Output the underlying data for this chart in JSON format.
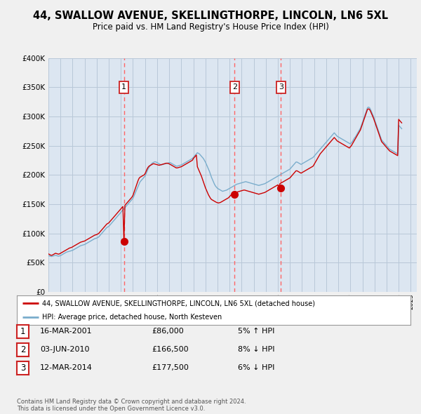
{
  "title": "44, SWALLOW AVENUE, SKELLINGTHORPE, LINCOLN, LN6 5XL",
  "subtitle": "Price paid vs. HM Land Registry's House Price Index (HPI)",
  "ylim": [
    0,
    400000
  ],
  "yticks": [
    0,
    50000,
    100000,
    150000,
    200000,
    250000,
    300000,
    350000,
    400000
  ],
  "line_color_red": "#cc0000",
  "line_color_blue": "#7aadcc",
  "vline_color": "#ff6666",
  "bg_color": "#f0f0f0",
  "plot_bg": "#dce6f1",
  "grid_color": "#b8c8d8",
  "legend_label_red": "44, SWALLOW AVENUE, SKELLINGTHORPE, LINCOLN, LN6 5XL (detached house)",
  "legend_label_blue": "HPI: Average price, detached house, North Kesteven",
  "sales": [
    {
      "num": 1,
      "date": "16-MAR-2001",
      "price": 86000,
      "pct": "5%",
      "dir": "↑",
      "x_year": 2001.25
    },
    {
      "num": 2,
      "date": "03-JUN-2010",
      "price": 166500,
      "pct": "8%",
      "dir": "↓",
      "x_year": 2010.42
    },
    {
      "num": 3,
      "date": "12-MAR-2014",
      "price": 177500,
      "pct": "6%",
      "dir": "↓",
      "x_year": 2014.25
    }
  ],
  "footer": "Contains HM Land Registry data © Crown copyright and database right 2024.\nThis data is licensed under the Open Government Licence v3.0.",
  "xmin": 1995,
  "xmax": 2025.5,
  "hpi_x": [
    1995.0,
    1995.083,
    1995.167,
    1995.25,
    1995.333,
    1995.417,
    1995.5,
    1995.583,
    1995.667,
    1995.75,
    1995.833,
    1995.917,
    1996.0,
    1996.083,
    1996.167,
    1996.25,
    1996.333,
    1996.417,
    1996.5,
    1996.583,
    1996.667,
    1996.75,
    1996.833,
    1996.917,
    1997.0,
    1997.083,
    1997.167,
    1997.25,
    1997.333,
    1997.417,
    1997.5,
    1997.583,
    1997.667,
    1997.75,
    1997.833,
    1997.917,
    1998.0,
    1998.083,
    1998.167,
    1998.25,
    1998.333,
    1998.417,
    1998.5,
    1998.583,
    1998.667,
    1998.75,
    1998.833,
    1998.917,
    1999.0,
    1999.083,
    1999.167,
    1999.25,
    1999.333,
    1999.417,
    1999.5,
    1999.583,
    1999.667,
    1999.75,
    1999.833,
    1999.917,
    2000.0,
    2000.083,
    2000.167,
    2000.25,
    2000.333,
    2000.417,
    2000.5,
    2000.583,
    2000.667,
    2000.75,
    2000.833,
    2000.917,
    2001.0,
    2001.083,
    2001.167,
    2001.25,
    2001.333,
    2001.417,
    2001.5,
    2001.583,
    2001.667,
    2001.75,
    2001.833,
    2001.917,
    2002.0,
    2002.083,
    2002.167,
    2002.25,
    2002.333,
    2002.417,
    2002.5,
    2002.583,
    2002.667,
    2002.75,
    2002.833,
    2002.917,
    2003.0,
    2003.083,
    2003.167,
    2003.25,
    2003.333,
    2003.417,
    2003.5,
    2003.583,
    2003.667,
    2003.75,
    2003.833,
    2003.917,
    2004.0,
    2004.083,
    2004.167,
    2004.25,
    2004.333,
    2004.417,
    2004.5,
    2004.583,
    2004.667,
    2004.75,
    2004.833,
    2004.917,
    2005.0,
    2005.083,
    2005.167,
    2005.25,
    2005.333,
    2005.417,
    2005.5,
    2005.583,
    2005.667,
    2005.75,
    2005.833,
    2005.917,
    2006.0,
    2006.083,
    2006.167,
    2006.25,
    2006.333,
    2006.417,
    2006.5,
    2006.583,
    2006.667,
    2006.75,
    2006.833,
    2006.917,
    2007.0,
    2007.083,
    2007.167,
    2007.25,
    2007.333,
    2007.417,
    2007.5,
    2007.583,
    2007.667,
    2007.75,
    2007.833,
    2007.917,
    2008.0,
    2008.083,
    2008.167,
    2008.25,
    2008.333,
    2008.417,
    2008.5,
    2008.583,
    2008.667,
    2008.75,
    2008.833,
    2008.917,
    2009.0,
    2009.083,
    2009.167,
    2009.25,
    2009.333,
    2009.417,
    2009.5,
    2009.583,
    2009.667,
    2009.75,
    2009.833,
    2009.917,
    2010.0,
    2010.083,
    2010.167,
    2010.25,
    2010.333,
    2010.417,
    2010.5,
    2010.583,
    2010.667,
    2010.75,
    2010.833,
    2010.917,
    2011.0,
    2011.083,
    2011.167,
    2011.25,
    2011.333,
    2011.417,
    2011.5,
    2011.583,
    2011.667,
    2011.75,
    2011.833,
    2011.917,
    2012.0,
    2012.083,
    2012.167,
    2012.25,
    2012.333,
    2012.417,
    2012.5,
    2012.583,
    2012.667,
    2012.75,
    2012.833,
    2012.917,
    2013.0,
    2013.083,
    2013.167,
    2013.25,
    2013.333,
    2013.417,
    2013.5,
    2013.583,
    2013.667,
    2013.75,
    2013.833,
    2013.917,
    2014.0,
    2014.083,
    2014.167,
    2014.25,
    2014.333,
    2014.417,
    2014.5,
    2014.583,
    2014.667,
    2014.75,
    2014.833,
    2014.917,
    2015.0,
    2015.083,
    2015.167,
    2015.25,
    2015.333,
    2015.417,
    2015.5,
    2015.583,
    2015.667,
    2015.75,
    2015.833,
    2015.917,
    2016.0,
    2016.083,
    2016.167,
    2016.25,
    2016.333,
    2016.417,
    2016.5,
    2016.583,
    2016.667,
    2016.75,
    2016.833,
    2016.917,
    2017.0,
    2017.083,
    2017.167,
    2017.25,
    2017.333,
    2017.417,
    2017.5,
    2017.583,
    2017.667,
    2017.75,
    2017.833,
    2017.917,
    2018.0,
    2018.083,
    2018.167,
    2018.25,
    2018.333,
    2018.417,
    2018.5,
    2018.583,
    2018.667,
    2018.75,
    2018.833,
    2018.917,
    2019.0,
    2019.083,
    2019.167,
    2019.25,
    2019.333,
    2019.417,
    2019.5,
    2019.583,
    2019.667,
    2019.75,
    2019.833,
    2019.917,
    2020.0,
    2020.083,
    2020.167,
    2020.25,
    2020.333,
    2020.417,
    2020.5,
    2020.583,
    2020.667,
    2020.75,
    2020.833,
    2020.917,
    2021.0,
    2021.083,
    2021.167,
    2021.25,
    2021.333,
    2021.417,
    2021.5,
    2021.583,
    2021.667,
    2021.75,
    2021.833,
    2021.917,
    2022.0,
    2022.083,
    2022.167,
    2022.25,
    2022.333,
    2022.417,
    2022.5,
    2022.583,
    2022.667,
    2022.75,
    2022.833,
    2022.917,
    2023.0,
    2023.083,
    2023.167,
    2023.25,
    2023.333,
    2023.417,
    2023.5,
    2023.583,
    2023.667,
    2023.75,
    2023.833,
    2023.917,
    2024.0,
    2024.083,
    2024.167,
    2024.25
  ],
  "hpi_y": [
    62000,
    61500,
    61000,
    60500,
    61000,
    61500,
    62000,
    62500,
    62000,
    61500,
    61000,
    61500,
    62000,
    63000,
    64000,
    65000,
    66000,
    67000,
    68000,
    68500,
    69000,
    69500,
    70000,
    70500,
    71000,
    72000,
    73000,
    74000,
    75000,
    76000,
    77000,
    78000,
    79000,
    79500,
    80000,
    80500,
    81000,
    82000,
    83000,
    84000,
    85000,
    86000,
    87000,
    88000,
    89000,
    90000,
    91000,
    91500,
    92000,
    93000,
    94000,
    96000,
    98000,
    100000,
    102000,
    104000,
    106000,
    108000,
    110000,
    111000,
    112000,
    114000,
    116000,
    118000,
    120000,
    122000,
    124000,
    126000,
    128000,
    130000,
    132000,
    134000,
    136000,
    138000,
    140000,
    142000,
    144000,
    146000,
    148000,
    150000,
    152000,
    154000,
    156000,
    158000,
    160000,
    164000,
    168000,
    172000,
    176000,
    180000,
    184000,
    188000,
    190000,
    192000,
    194000,
    196000,
    198000,
    202000,
    206000,
    210000,
    213000,
    216000,
    218000,
    220000,
    221000,
    222000,
    222500,
    222000,
    221000,
    220000,
    219000,
    218000,
    217000,
    217500,
    218000,
    218500,
    219000,
    219500,
    220000,
    220500,
    221000,
    221000,
    220000,
    219000,
    218000,
    217000,
    216000,
    215000,
    215000,
    215500,
    216000,
    216500,
    217000,
    218000,
    219000,
    220000,
    221000,
    222000,
    223000,
    224000,
    225000,
    226000,
    227000,
    228000,
    230000,
    232000,
    234000,
    236000,
    238000,
    237000,
    236000,
    234000,
    232000,
    230000,
    228000,
    225000,
    222000,
    218000,
    214000,
    210000,
    206000,
    201000,
    196000,
    192000,
    188000,
    184000,
    181000,
    179000,
    177000,
    176000,
    175000,
    174000,
    173000,
    172000,
    172500,
    173000,
    173500,
    174000,
    175000,
    176000,
    177000,
    178000,
    179000,
    180000,
    181000,
    182000,
    183000,
    184000,
    184500,
    185000,
    185500,
    186000,
    186500,
    187000,
    187500,
    188000,
    188500,
    188000,
    187500,
    187000,
    186500,
    186000,
    185500,
    185000,
    184500,
    184000,
    183500,
    183000,
    182500,
    182000,
    182500,
    183000,
    183500,
    184000,
    184500,
    185000,
    186000,
    187000,
    188000,
    189000,
    190000,
    191000,
    192000,
    193000,
    194000,
    195000,
    196000,
    197000,
    198000,
    199000,
    200000,
    201000,
    202000,
    203000,
    204000,
    205000,
    206000,
    207000,
    208000,
    209000,
    210000,
    212000,
    214000,
    216000,
    218000,
    220000,
    222000,
    222000,
    221000,
    220000,
    219000,
    218000,
    219000,
    220000,
    221000,
    222000,
    223000,
    224000,
    225000,
    226000,
    227000,
    228000,
    229000,
    230000,
    232000,
    234000,
    236000,
    238000,
    240000,
    242000,
    244000,
    246000,
    248000,
    250000,
    252000,
    254000,
    256000,
    258000,
    260000,
    262000,
    264000,
    266000,
    268000,
    270000,
    272000,
    270000,
    268000,
    266000,
    265000,
    264000,
    263000,
    262000,
    261000,
    260000,
    259000,
    258000,
    257000,
    256000,
    255000,
    254000,
    253000,
    255000,
    257000,
    260000,
    263000,
    265000,
    268000,
    271000,
    274000,
    277000,
    280000,
    285000,
    290000,
    295000,
    300000,
    305000,
    310000,
    315000,
    316000,
    315000,
    312000,
    308000,
    304000,
    300000,
    295000,
    290000,
    285000,
    280000,
    275000,
    270000,
    265000,
    260000,
    258000,
    256000,
    254000,
    252000,
    250000,
    248000,
    246000,
    244000,
    243000,
    242000,
    241000,
    240000,
    239000,
    238000,
    237000,
    236000,
    285000,
    283000,
    281000,
    279000
  ],
  "price_x": [
    1995.0,
    1995.083,
    1995.167,
    1995.25,
    1995.333,
    1995.417,
    1995.5,
    1995.583,
    1995.667,
    1995.75,
    1995.833,
    1995.917,
    1996.0,
    1996.083,
    1996.167,
    1996.25,
    1996.333,
    1996.417,
    1996.5,
    1996.583,
    1996.667,
    1996.75,
    1996.833,
    1996.917,
    1997.0,
    1997.083,
    1997.167,
    1997.25,
    1997.333,
    1997.417,
    1997.5,
    1997.583,
    1997.667,
    1997.75,
    1997.833,
    1997.917,
    1998.0,
    1998.083,
    1998.167,
    1998.25,
    1998.333,
    1998.417,
    1998.5,
    1998.583,
    1998.667,
    1998.75,
    1998.833,
    1998.917,
    1999.0,
    1999.083,
    1999.167,
    1999.25,
    1999.333,
    1999.417,
    1999.5,
    1999.583,
    1999.667,
    1999.75,
    1999.833,
    1999.917,
    2000.0,
    2000.083,
    2000.167,
    2000.25,
    2000.333,
    2000.417,
    2000.5,
    2000.583,
    2000.667,
    2000.75,
    2000.833,
    2000.917,
    2001.0,
    2001.083,
    2001.167,
    2001.25,
    2001.333,
    2001.417,
    2001.5,
    2001.583,
    2001.667,
    2001.75,
    2001.833,
    2001.917,
    2002.0,
    2002.083,
    2002.167,
    2002.25,
    2002.333,
    2002.417,
    2002.5,
    2002.583,
    2002.667,
    2002.75,
    2002.833,
    2002.917,
    2003.0,
    2003.083,
    2003.167,
    2003.25,
    2003.333,
    2003.417,
    2003.5,
    2003.583,
    2003.667,
    2003.75,
    2003.833,
    2003.917,
    2004.0,
    2004.083,
    2004.167,
    2004.25,
    2004.333,
    2004.417,
    2004.5,
    2004.583,
    2004.667,
    2004.75,
    2004.833,
    2004.917,
    2005.0,
    2005.083,
    2005.167,
    2005.25,
    2005.333,
    2005.417,
    2005.5,
    2005.583,
    2005.667,
    2005.75,
    2005.833,
    2005.917,
    2006.0,
    2006.083,
    2006.167,
    2006.25,
    2006.333,
    2006.417,
    2006.5,
    2006.583,
    2006.667,
    2006.75,
    2006.833,
    2006.917,
    2007.0,
    2007.083,
    2007.167,
    2007.25,
    2007.333,
    2007.417,
    2007.5,
    2007.583,
    2007.667,
    2007.75,
    2007.833,
    2007.917,
    2008.0,
    2008.083,
    2008.167,
    2008.25,
    2008.333,
    2008.417,
    2008.5,
    2008.583,
    2008.667,
    2008.75,
    2008.833,
    2008.917,
    2009.0,
    2009.083,
    2009.167,
    2009.25,
    2009.333,
    2009.417,
    2009.5,
    2009.583,
    2009.667,
    2009.75,
    2009.833,
    2009.917,
    2010.0,
    2010.083,
    2010.167,
    2010.25,
    2010.333,
    2010.417,
    2010.5,
    2010.583,
    2010.667,
    2010.75,
    2010.833,
    2010.917,
    2011.0,
    2011.083,
    2011.167,
    2011.25,
    2011.333,
    2011.417,
    2011.5,
    2011.583,
    2011.667,
    2011.75,
    2011.833,
    2011.917,
    2012.0,
    2012.083,
    2012.167,
    2012.25,
    2012.333,
    2012.417,
    2012.5,
    2012.583,
    2012.667,
    2012.75,
    2012.833,
    2012.917,
    2013.0,
    2013.083,
    2013.167,
    2013.25,
    2013.333,
    2013.417,
    2013.5,
    2013.583,
    2013.667,
    2013.75,
    2013.833,
    2013.917,
    2014.0,
    2014.083,
    2014.167,
    2014.25,
    2014.333,
    2014.417,
    2014.5,
    2014.583,
    2014.667,
    2014.75,
    2014.833,
    2014.917,
    2015.0,
    2015.083,
    2015.167,
    2015.25,
    2015.333,
    2015.417,
    2015.5,
    2015.583,
    2015.667,
    2015.75,
    2015.833,
    2015.917,
    2016.0,
    2016.083,
    2016.167,
    2016.25,
    2016.333,
    2016.417,
    2016.5,
    2016.583,
    2016.667,
    2016.75,
    2016.833,
    2016.917,
    2017.0,
    2017.083,
    2017.167,
    2017.25,
    2017.333,
    2017.417,
    2017.5,
    2017.583,
    2017.667,
    2017.75,
    2017.833,
    2017.917,
    2018.0,
    2018.083,
    2018.167,
    2018.25,
    2018.333,
    2018.417,
    2018.5,
    2018.583,
    2018.667,
    2018.75,
    2018.833,
    2018.917,
    2019.0,
    2019.083,
    2019.167,
    2019.25,
    2019.333,
    2019.417,
    2019.5,
    2019.583,
    2019.667,
    2019.75,
    2019.833,
    2019.917,
    2020.0,
    2020.083,
    2020.167,
    2020.25,
    2020.333,
    2020.417,
    2020.5,
    2020.583,
    2020.667,
    2020.75,
    2020.833,
    2020.917,
    2021.0,
    2021.083,
    2021.167,
    2021.25,
    2021.333,
    2021.417,
    2021.5,
    2021.583,
    2021.667,
    2021.75,
    2021.833,
    2021.917,
    2022.0,
    2022.083,
    2022.167,
    2022.25,
    2022.333,
    2022.417,
    2022.5,
    2022.583,
    2022.667,
    2022.75,
    2022.833,
    2022.917,
    2023.0,
    2023.083,
    2023.167,
    2023.25,
    2023.333,
    2023.417,
    2023.5,
    2023.583,
    2023.667,
    2023.75,
    2023.833,
    2023.917,
    2024.0,
    2024.083,
    2024.167,
    2024.25
  ],
  "price_y": [
    65000,
    64000,
    63000,
    62500,
    63000,
    64000,
    65000,
    66000,
    65500,
    65000,
    64500,
    65000,
    66000,
    67000,
    68000,
    69000,
    70000,
    71000,
    72000,
    73000,
    74000,
    75000,
    75500,
    76000,
    77000,
    78000,
    79000,
    80000,
    81000,
    82000,
    83000,
    84000,
    85000,
    85500,
    86000,
    86500,
    87000,
    88000,
    89000,
    90000,
    91000,
    92000,
    93000,
    94000,
    95000,
    96000,
    97000,
    97500,
    98000,
    99000,
    100000,
    102000,
    104000,
    106000,
    108000,
    110000,
    112000,
    114000,
    116000,
    117000,
    118000,
    120000,
    122000,
    124000,
    126000,
    128000,
    130000,
    132000,
    134000,
    136000,
    138000,
    140000,
    142000,
    144000,
    146000,
    86000,
    148000,
    150000,
    152000,
    154000,
    156000,
    158000,
    160000,
    162000,
    165000,
    170000,
    175000,
    180000,
    185000,
    190000,
    194000,
    196000,
    197000,
    198000,
    199000,
    200000,
    202000,
    206000,
    210000,
    213000,
    215000,
    216000,
    217000,
    218000,
    219000,
    219000,
    218500,
    218000,
    217500,
    217000,
    216500,
    217000,
    217500,
    218000,
    218500,
    219000,
    219500,
    220000,
    220000,
    219500,
    219000,
    218000,
    217000,
    216000,
    215000,
    214000,
    213000,
    212000,
    212000,
    212500,
    213000,
    213500,
    214000,
    215000,
    216000,
    217000,
    218000,
    219000,
    220000,
    221000,
    222000,
    223000,
    224000,
    225000,
    228000,
    230000,
    232000,
    234000,
    214000,
    210000,
    206000,
    202000,
    198000,
    193000,
    188000,
    183000,
    178000,
    174000,
    170000,
    166000,
    163000,
    160000,
    158000,
    157000,
    156000,
    155000,
    154000,
    153000,
    152500,
    152000,
    152500,
    153000,
    154000,
    155000,
    156000,
    157000,
    158000,
    159000,
    160000,
    161000,
    163000,
    165000,
    166500,
    167500,
    168500,
    169500,
    170000,
    170500,
    171000,
    171500,
    172000,
    172500,
    173000,
    173500,
    174000,
    174000,
    173500,
    173000,
    172500,
    172000,
    171500,
    171000,
    170500,
    170000,
    169500,
    169000,
    168500,
    168000,
    167500,
    167000,
    167500,
    168000,
    168500,
    169000,
    169500,
    170000,
    171000,
    172000,
    173000,
    174000,
    175000,
    176000,
    177000,
    178000,
    179000,
    180000,
    181000,
    182000,
    183000,
    177500,
    185000,
    186000,
    187000,
    188000,
    189000,
    190000,
    191000,
    192000,
    193000,
    194000,
    195000,
    197000,
    199000,
    201000,
    203000,
    205000,
    207000,
    207000,
    206000,
    205000,
    204000,
    203000,
    204000,
    205000,
    206000,
    207000,
    208000,
    209000,
    210000,
    211000,
    212000,
    213000,
    214000,
    215000,
    218000,
    221000,
    224000,
    227000,
    230000,
    233000,
    236000,
    238000,
    240000,
    242000,
    244000,
    246000,
    248000,
    250000,
    252000,
    254000,
    256000,
    258000,
    260000,
    262000,
    264000,
    262000,
    260000,
    258000,
    257000,
    256000,
    255000,
    254000,
    253000,
    252000,
    251000,
    250000,
    249000,
    248000,
    247000,
    246000,
    248000,
    250000,
    253000,
    256000,
    259000,
    262000,
    265000,
    268000,
    271000,
    274000,
    277000,
    282000,
    287000,
    292000,
    297000,
    302000,
    307000,
    312000,
    313000,
    312000,
    309000,
    305000,
    301000,
    297000,
    292000,
    287000,
    282000,
    277000,
    272000,
    267000,
    262000,
    257000,
    255000,
    253000,
    251000,
    249000,
    247000,
    245000,
    243000,
    241000,
    240000,
    239000,
    238000,
    237000,
    236000,
    235000,
    234000,
    233000,
    295000,
    293000,
    291000,
    289000
  ]
}
